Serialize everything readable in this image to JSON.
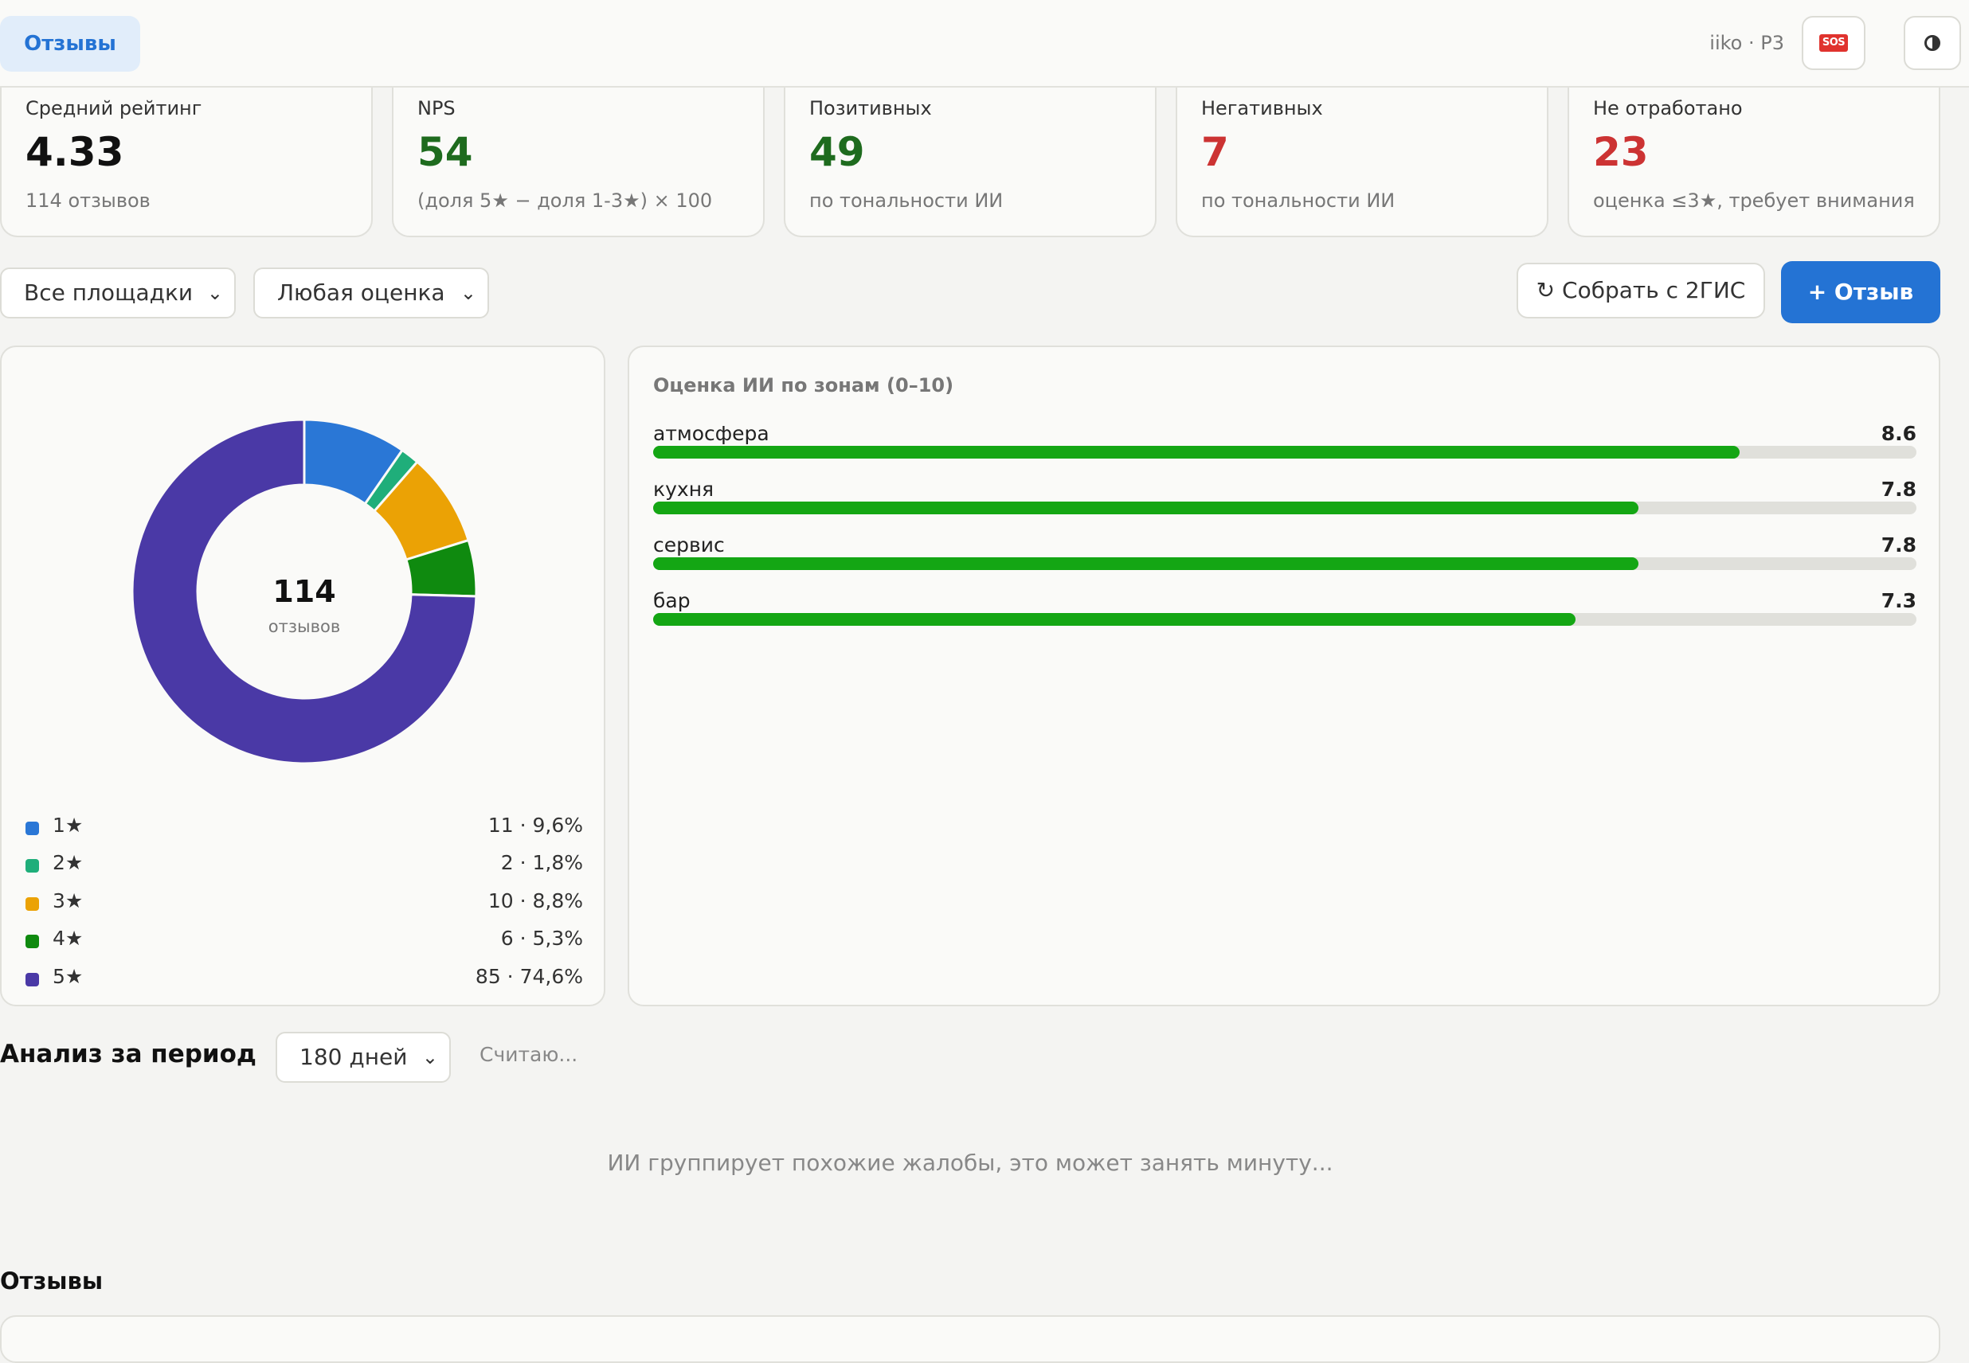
{
  "header": {
    "tab_label": "Отзывы",
    "venue": "iiko · P3",
    "sos_icon": "sos-icon",
    "theme_icon": "contrast-icon"
  },
  "kpis": [
    {
      "label": "Средний рейтинг",
      "value": "4.33",
      "sub": "114 отзывов",
      "color": "#111111"
    },
    {
      "label": "NPS",
      "value": "54",
      "sub": "(доля 5★ − доля 1-3★) × 100",
      "color": "#1e6b1e"
    },
    {
      "label": "Позитивных",
      "value": "49",
      "sub": "по тональности ИИ",
      "color": "#1e6b1e"
    },
    {
      "label": "Негативных",
      "value": "7",
      "sub": "по тональности ИИ",
      "color": "#cc3333"
    },
    {
      "label": "Не отработано",
      "value": "23",
      "sub": "оценка ≤3★, требует внимания",
      "color": "#cc3333"
    }
  ],
  "filters": {
    "platform": "Все площадки",
    "rating": "Любая оценка",
    "collect_button": "↻ Собрать с 2ГИС",
    "add_button": "+ Отзыв"
  },
  "chart_data": [
    {
      "type": "pie",
      "center_value": "114",
      "center_label": "отзывов",
      "categories": [
        "1★",
        "2★",
        "3★",
        "4★",
        "5★"
      ],
      "values": [
        11,
        2,
        10,
        6,
        85
      ],
      "value_labels": [
        "11 · 9,6%",
        "2 · 1,8%",
        "10 · 8,8%",
        "6 · 5,3%",
        "85 · 74,6%"
      ],
      "colors": [
        "#2a77d6",
        "#1fae7a",
        "#eba205",
        "#0f8a0f",
        "#4a39a6"
      ]
    },
    {
      "type": "bar",
      "title": "Оценка ИИ по зонам (0–10)",
      "categories": [
        "атмосфера",
        "кухня",
        "сервис",
        "бар"
      ],
      "values": [
        8.6,
        7.8,
        7.8,
        7.3
      ],
      "value_labels": [
        "8.6",
        "7.8",
        "7.8",
        "7.3"
      ],
      "xlim": [
        0,
        10
      ],
      "color": "#14a614"
    }
  ],
  "analysis": {
    "title": "Анализ за период",
    "period": "180 дней",
    "status": "Считаю...",
    "note": "ИИ группирует похожие жалобы, это может занять минуту..."
  },
  "reviews": {
    "title": "Отзывы"
  }
}
